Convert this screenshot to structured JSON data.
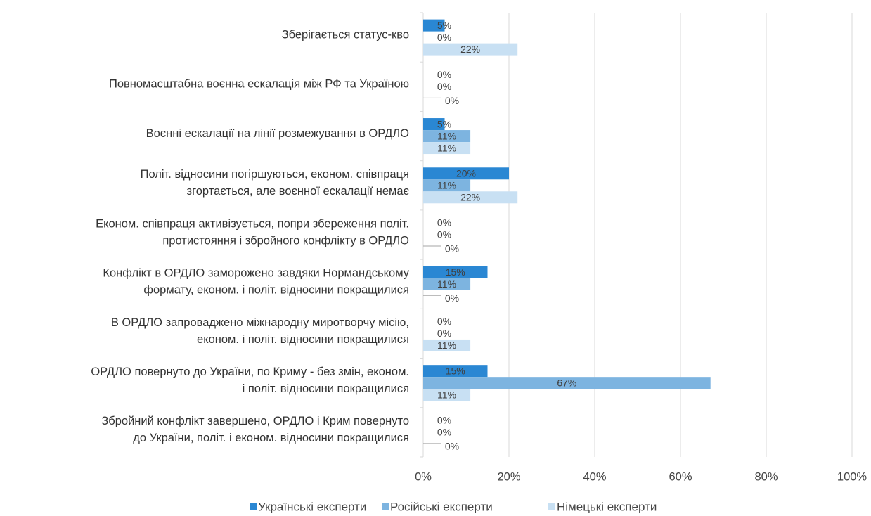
{
  "chart_data": {
    "type": "bar",
    "orientation": "horizontal",
    "categories": [
      [
        "Зберігається статус-кво"
      ],
      [
        "Повномасштабна воєнна ескалація між РФ та Україною"
      ],
      [
        "Воєнні ескалації на лінії розмежування в ОРДЛО"
      ],
      [
        "Політ. відносини погіршуються, економ. співпраця",
        "згортається, але воєнної ескалації немає"
      ],
      [
        "Економ. співпраця активізується, попри збереження  політ.",
        "протистояння і збройного конфлікту в ОРДЛО"
      ],
      [
        "Конфлікт в ОРДЛО заморожено завдяки Нормандському",
        "формату, економ. і політ. відносини покращилися"
      ],
      [
        "В ОРДЛО запроваджено міжнародну миротворчу місію,",
        "економ. і політ. відносини покращилися"
      ],
      [
        "ОРДЛО повернуто до України, по Криму - без змін, економ.",
        "і політ. відносини покращилися"
      ],
      [
        "Збройний конфлікт завершено, ОРДЛО і Крим повернуто",
        "до України, політ. і економ. відносини покращилися"
      ]
    ],
    "series": [
      {
        "name": "Українські експерти",
        "color": "#2a87d3",
        "values": [
          5,
          0,
          5,
          20,
          0,
          15,
          0,
          15,
          0
        ],
        "value_labels": [
          "5%",
          "0%",
          "5%",
          "20%",
          "0%",
          "15%",
          "0%",
          "15%",
          "0%"
        ]
      },
      {
        "name": "Російські експерти",
        "color": "#7db4e0",
        "values": [
          0,
          0,
          11,
          11,
          0,
          11,
          0,
          67,
          0
        ],
        "value_labels": [
          "0%",
          "0%",
          "11%",
          "11%",
          "0%",
          "11%",
          "0%",
          "67%",
          "0%"
        ]
      },
      {
        "name": "Німецькі експерти",
        "color": "#c8e0f3",
        "values": [
          22,
          0,
          11,
          22,
          0,
          0,
          11,
          11,
          0
        ],
        "value_labels": [
          "22%",
          "0%",
          "11%",
          "22%",
          "0%",
          "0%",
          "11%",
          "11%",
          "0%"
        ]
      }
    ],
    "xlim": [
      0,
      100
    ],
    "xticks": [
      {
        "value": 0,
        "label": "0%"
      },
      {
        "value": 20,
        "label": "20%"
      },
      {
        "value": 40,
        "label": "40%"
      },
      {
        "value": 60,
        "label": "60%"
      },
      {
        "value": 80,
        "label": "80%"
      },
      {
        "value": 100,
        "label": "100%"
      }
    ],
    "grid": true,
    "legend": "bottom"
  }
}
